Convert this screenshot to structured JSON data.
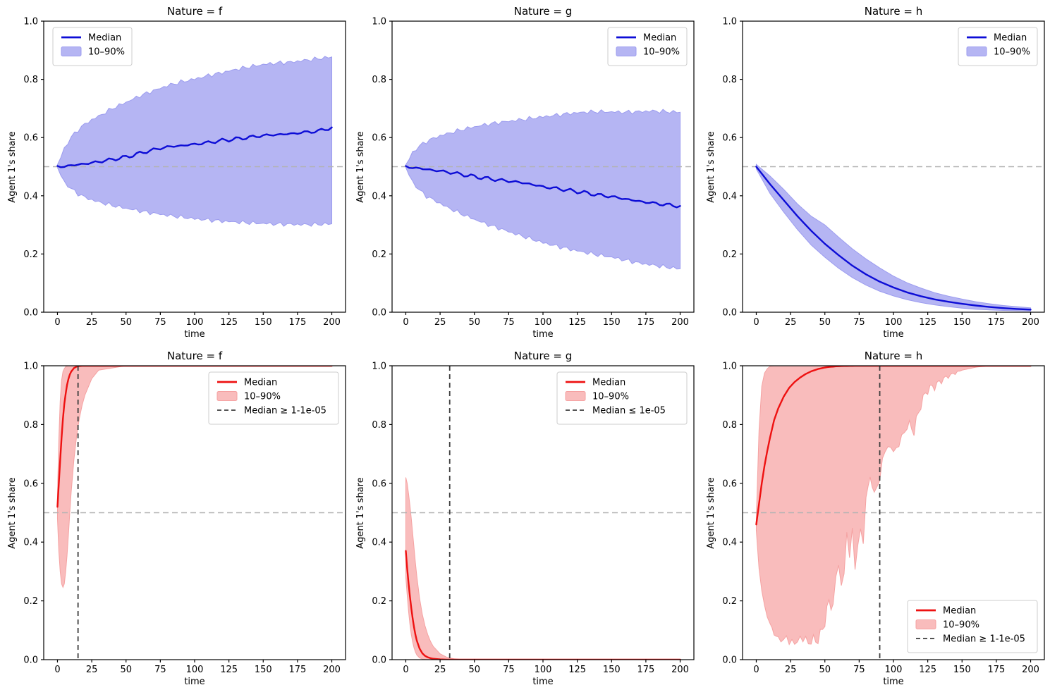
{
  "figure": {
    "background": "#ffffff"
  },
  "styles": {
    "blue_line": "#0d0dd6",
    "blue_fill": "#b5b5f3",
    "blue_fill_edge": "#9c9cef",
    "red_line": "#ee1111",
    "red_fill": "#f9bcbc",
    "red_fill_edge": "#f5a2a2",
    "hline_color": "#b3b3b3",
    "vline_color": "#3d3d3d",
    "spine_color": "#000000",
    "text_color": "#000000",
    "legend_border": "#cccccc",
    "legend_bg": "#ffffff"
  },
  "chart_data": [
    {
      "id": "f-top",
      "type": "line",
      "scheme": "blue",
      "title": "Nature = f",
      "xlabel": "time",
      "ylabel": "Agent 1's share",
      "xlim": [
        0,
        200
      ],
      "ylim": [
        0.0,
        1.0
      ],
      "xticks": [
        0,
        25,
        50,
        75,
        100,
        125,
        150,
        175,
        200
      ],
      "xtick_labels": [
        "0",
        "25",
        "50",
        "75",
        "100",
        "125",
        "150",
        "175",
        "200"
      ],
      "yticks": [
        0.0,
        0.2,
        0.4,
        0.6,
        0.8,
        1.0
      ],
      "ytick_labels": [
        "0.0",
        "0.2",
        "0.4",
        "0.6",
        "0.8",
        "1.0"
      ],
      "hline": 0.5,
      "vline": null,
      "legend": {
        "position": "upper-left",
        "entries": [
          {
            "type": "line",
            "label": "Median"
          },
          {
            "type": "patch",
            "label": "10–90%"
          }
        ]
      },
      "series": {
        "t": [
          0,
          5,
          10,
          15,
          20,
          25,
          30,
          40,
          50,
          60,
          70,
          80,
          90,
          100,
          110,
          120,
          130,
          140,
          150,
          160,
          170,
          180,
          190,
          200
        ],
        "median": [
          0.5,
          0.501,
          0.504,
          0.507,
          0.51,
          0.513,
          0.517,
          0.525,
          0.533,
          0.546,
          0.558,
          0.568,
          0.572,
          0.577,
          0.583,
          0.59,
          0.595,
          0.601,
          0.607,
          0.61,
          0.613,
          0.618,
          0.622,
          0.635
        ],
        "p90": [
          0.505,
          0.562,
          0.601,
          0.626,
          0.646,
          0.661,
          0.673,
          0.7,
          0.721,
          0.743,
          0.761,
          0.778,
          0.791,
          0.801,
          0.813,
          0.823,
          0.834,
          0.843,
          0.851,
          0.856,
          0.859,
          0.865,
          0.871,
          0.877
        ],
        "p10": [
          0.495,
          0.447,
          0.424,
          0.407,
          0.395,
          0.386,
          0.379,
          0.367,
          0.357,
          0.348,
          0.34,
          0.333,
          0.327,
          0.321,
          0.317,
          0.313,
          0.31,
          0.307,
          0.305,
          0.303,
          0.302,
          0.301,
          0.302,
          0.304
        ]
      }
    },
    {
      "id": "g-top",
      "type": "line",
      "scheme": "blue",
      "title": "Nature = g",
      "xlabel": "time",
      "ylabel": "Agent 1's share",
      "xlim": [
        0,
        200
      ],
      "ylim": [
        0.0,
        1.0
      ],
      "xticks": [
        0,
        25,
        50,
        75,
        100,
        125,
        150,
        175,
        200
      ],
      "xtick_labels": [
        "0",
        "25",
        "50",
        "75",
        "100",
        "125",
        "150",
        "175",
        "200"
      ],
      "yticks": [
        0.0,
        0.2,
        0.4,
        0.6,
        0.8,
        1.0
      ],
      "ytick_labels": [
        "0.0",
        "0.2",
        "0.4",
        "0.6",
        "0.8",
        "1.0"
      ],
      "hline": 0.5,
      "vline": null,
      "legend": {
        "position": "upper-right",
        "entries": [
          {
            "type": "line",
            "label": "Median"
          },
          {
            "type": "patch",
            "label": "10–90%"
          }
        ]
      },
      "series": {
        "t": [
          0,
          5,
          10,
          15,
          20,
          25,
          30,
          40,
          50,
          60,
          70,
          80,
          90,
          100,
          110,
          120,
          130,
          140,
          150,
          160,
          170,
          180,
          190,
          200
        ],
        "median": [
          0.5,
          0.497,
          0.494,
          0.491,
          0.488,
          0.485,
          0.482,
          0.474,
          0.466,
          0.459,
          0.453,
          0.448,
          0.441,
          0.431,
          0.425,
          0.418,
          0.411,
          0.403,
          0.397,
          0.389,
          0.381,
          0.375,
          0.369,
          0.365
        ],
        "p90": [
          0.505,
          0.549,
          0.571,
          0.586,
          0.597,
          0.606,
          0.613,
          0.626,
          0.637,
          0.646,
          0.653,
          0.659,
          0.665,
          0.671,
          0.677,
          0.683,
          0.687,
          0.689,
          0.688,
          0.687,
          0.689,
          0.691,
          0.689,
          0.687
        ],
        "p10": [
          0.495,
          0.447,
          0.419,
          0.399,
          0.386,
          0.374,
          0.361,
          0.339,
          0.319,
          0.301,
          0.285,
          0.269,
          0.254,
          0.239,
          0.227,
          0.216,
          0.206,
          0.197,
          0.189,
          0.179,
          0.169,
          0.162,
          0.155,
          0.149
        ]
      }
    },
    {
      "id": "h-top",
      "type": "line",
      "scheme": "blue",
      "title": "Nature = h",
      "xlabel": "time",
      "ylabel": "Agent 1's share",
      "xlim": [
        0,
        200
      ],
      "ylim": [
        0.0,
        1.0
      ],
      "xticks": [
        0,
        25,
        50,
        75,
        100,
        125,
        150,
        175,
        200
      ],
      "xtick_labels": [
        "0",
        "25",
        "50",
        "75",
        "100",
        "125",
        "150",
        "175",
        "200"
      ],
      "yticks": [
        0.0,
        0.2,
        0.4,
        0.6,
        0.8,
        1.0
      ],
      "ytick_labels": [
        "0.0",
        "0.2",
        "0.4",
        "0.6",
        "0.8",
        "1.0"
      ],
      "hline": 0.5,
      "vline": null,
      "legend": {
        "position": "upper-right",
        "entries": [
          {
            "type": "line",
            "label": "Median"
          },
          {
            "type": "patch",
            "label": "10–90%"
          }
        ]
      },
      "series": {
        "t": [
          0,
          10,
          20,
          30,
          40,
          50,
          60,
          70,
          80,
          90,
          100,
          110,
          120,
          130,
          140,
          150,
          160,
          170,
          180,
          190,
          200
        ],
        "median": [
          0.5,
          0.44,
          0.385,
          0.33,
          0.28,
          0.235,
          0.196,
          0.16,
          0.13,
          0.105,
          0.085,
          0.068,
          0.055,
          0.044,
          0.036,
          0.029,
          0.023,
          0.018,
          0.014,
          0.011,
          0.009
        ],
        "p90": [
          0.508,
          0.468,
          0.422,
          0.372,
          0.33,
          0.3,
          0.258,
          0.218,
          0.183,
          0.152,
          0.124,
          0.101,
          0.083,
          0.067,
          0.055,
          0.045,
          0.036,
          0.029,
          0.023,
          0.019,
          0.015
        ],
        "p10": [
          0.492,
          0.408,
          0.344,
          0.284,
          0.231,
          0.189,
          0.151,
          0.119,
          0.093,
          0.072,
          0.056,
          0.043,
          0.033,
          0.025,
          0.019,
          0.014,
          0.01,
          0.008,
          0.006,
          0.005,
          0.004
        ]
      }
    },
    {
      "id": "f-bottom",
      "type": "line",
      "scheme": "red",
      "title": "Nature = f",
      "xlabel": "time",
      "ylabel": "Agent 1's share",
      "xlim": [
        0,
        200
      ],
      "ylim": [
        0.0,
        1.0
      ],
      "xticks": [
        0,
        25,
        50,
        75,
        100,
        125,
        150,
        175,
        200
      ],
      "xtick_labels": [
        "0",
        "25",
        "50",
        "75",
        "100",
        "125",
        "150",
        "175",
        "200"
      ],
      "yticks": [
        0.0,
        0.2,
        0.4,
        0.6,
        0.8,
        1.0
      ],
      "ytick_labels": [
        "0.0",
        "0.2",
        "0.4",
        "0.6",
        "0.8",
        "1.0"
      ],
      "hline": 0.5,
      "vline": 15,
      "legend": {
        "position": "upper-right",
        "entries": [
          {
            "type": "line",
            "label": "Median"
          },
          {
            "type": "patch",
            "label": "10–90%"
          },
          {
            "type": "dashed",
            "label": "Median ≥ 1-1e-05"
          }
        ]
      },
      "series": {
        "t": [
          0,
          1,
          2,
          3,
          4,
          5,
          6,
          7,
          8,
          9,
          10,
          12,
          14,
          16,
          18,
          20,
          25,
          30,
          50,
          100,
          150,
          200
        ],
        "median": [
          0.52,
          0.6,
          0.68,
          0.755,
          0.82,
          0.87,
          0.905,
          0.935,
          0.955,
          0.97,
          0.98,
          0.992,
          0.997,
          0.999,
          1.0,
          1.0,
          1.0,
          1.0,
          1.0,
          1.0,
          1.0,
          1.0
        ],
        "p90": [
          0.56,
          0.75,
          0.88,
          0.95,
          0.98,
          0.99,
          0.997,
          0.999,
          1.0,
          1.0,
          1.0,
          1.0,
          1.0,
          1.0,
          1.0,
          1.0,
          1.0,
          1.0,
          1.0,
          1.0,
          1.0,
          1.0
        ],
        "p10": [
          0.48,
          0.37,
          0.3,
          0.258,
          0.246,
          0.258,
          0.3,
          0.355,
          0.425,
          0.5,
          0.57,
          0.68,
          0.762,
          0.822,
          0.866,
          0.9,
          0.956,
          0.985,
          1.0,
          1.0,
          1.0,
          1.0
        ]
      }
    },
    {
      "id": "g-bottom",
      "type": "line",
      "scheme": "red",
      "title": "Nature = g",
      "xlabel": "time",
      "ylabel": "Agent 1's share",
      "xlim": [
        0,
        200
      ],
      "ylim": [
        0.0,
        1.0
      ],
      "xticks": [
        0,
        25,
        50,
        75,
        100,
        125,
        150,
        175,
        200
      ],
      "xtick_labels": [
        "0",
        "25",
        "50",
        "75",
        "100",
        "125",
        "150",
        "175",
        "200"
      ],
      "yticks": [
        0.0,
        0.2,
        0.4,
        0.6,
        0.8,
        1.0
      ],
      "ytick_labels": [
        "0.0",
        "0.2",
        "0.4",
        "0.6",
        "0.8",
        "1.0"
      ],
      "hline": 0.5,
      "vline": 32,
      "legend": {
        "position": "upper-right",
        "entries": [
          {
            "type": "line",
            "label": "Median"
          },
          {
            "type": "patch",
            "label": "10–90%"
          },
          {
            "type": "dashed",
            "label": "Median ≤ 1e-05"
          }
        ]
      },
      "series": {
        "t": [
          0,
          1,
          2,
          3,
          4,
          5,
          6,
          7,
          8,
          10,
          12,
          14,
          16,
          18,
          20,
          25,
          30,
          35,
          40,
          50,
          100,
          150,
          200
        ],
        "median": [
          0.37,
          0.31,
          0.26,
          0.215,
          0.175,
          0.14,
          0.11,
          0.085,
          0.065,
          0.038,
          0.022,
          0.013,
          0.008,
          0.005,
          0.003,
          0.001,
          0.0,
          0.0,
          0.0,
          0.0,
          0.0,
          0.0,
          0.0
        ],
        "p90": [
          0.62,
          0.6,
          0.565,
          0.525,
          0.48,
          0.43,
          0.38,
          0.33,
          0.285,
          0.21,
          0.155,
          0.115,
          0.085,
          0.062,
          0.045,
          0.02,
          0.008,
          0.003,
          0.001,
          0.0,
          0.0,
          0.0,
          0.0
        ],
        "p10": [
          0.28,
          0.22,
          0.165,
          0.12,
          0.085,
          0.06,
          0.04,
          0.026,
          0.016,
          0.006,
          0.002,
          0.001,
          0.0,
          0.0,
          0.0,
          0.0,
          0.0,
          0.0,
          0.0,
          0.0,
          0.0,
          0.0,
          0.0
        ]
      }
    },
    {
      "id": "h-bottom",
      "type": "line",
      "scheme": "red",
      "title": "Nature = h",
      "xlabel": "time",
      "ylabel": "Agent 1's share",
      "xlim": [
        0,
        200
      ],
      "ylim": [
        0.0,
        1.0
      ],
      "xticks": [
        0,
        25,
        50,
        75,
        100,
        125,
        150,
        175,
        200
      ],
      "xtick_labels": [
        "0",
        "25",
        "50",
        "75",
        "100",
        "125",
        "150",
        "175",
        "200"
      ],
      "yticks": [
        0.0,
        0.2,
        0.4,
        0.6,
        0.8,
        1.0
      ],
      "ytick_labels": [
        "0.0",
        "0.2",
        "0.4",
        "0.6",
        "0.8",
        "1.0"
      ],
      "hline": 0.5,
      "vline": 90,
      "legend": {
        "position": "lower-right",
        "entries": [
          {
            "type": "line",
            "label": "Median"
          },
          {
            "type": "patch",
            "label": "10–90%"
          },
          {
            "type": "dashed",
            "label": "Median ≥ 1-1e-05"
          }
        ]
      },
      "series": {
        "t": [
          0,
          2,
          4,
          6,
          8,
          10,
          13,
          16,
          20,
          24,
          28,
          32,
          36,
          40,
          45,
          50,
          53,
          56,
          58,
          60,
          62,
          64,
          66,
          68,
          70,
          72,
          74,
          76,
          78,
          80,
          83,
          86,
          90,
          94,
          98,
          102,
          106,
          110,
          115,
          120,
          125,
          130,
          135,
          140,
          145,
          150,
          155,
          160,
          170,
          180,
          190,
          200
        ],
        "median": [
          0.46,
          0.53,
          0.6,
          0.66,
          0.71,
          0.755,
          0.815,
          0.855,
          0.895,
          0.925,
          0.945,
          0.96,
          0.972,
          0.981,
          0.989,
          0.994,
          0.996,
          0.997,
          0.998,
          0.9985,
          0.999,
          0.9992,
          0.9994,
          0.9996,
          0.9997,
          0.9998,
          0.9999,
          1.0,
          1.0,
          1.0,
          1.0,
          1.0,
          1.0,
          1.0,
          1.0,
          1.0,
          1.0,
          1.0,
          1.0,
          1.0,
          1.0,
          1.0,
          1.0,
          1.0,
          1.0,
          1.0,
          1.0,
          1.0,
          1.0,
          1.0,
          1.0,
          1.0
        ],
        "p90": [
          0.48,
          0.78,
          0.93,
          0.975,
          0.99,
          0.998,
          1.0,
          1.0,
          1.0,
          1.0,
          1.0,
          1.0,
          1.0,
          1.0,
          1.0,
          1.0,
          1.0,
          1.0,
          1.0,
          1.0,
          1.0,
          1.0,
          1.0,
          1.0,
          1.0,
          1.0,
          1.0,
          1.0,
          1.0,
          1.0,
          1.0,
          1.0,
          1.0,
          1.0,
          1.0,
          1.0,
          1.0,
          1.0,
          1.0,
          1.0,
          1.0,
          1.0,
          1.0,
          1.0,
          1.0,
          1.0,
          1.0,
          1.0,
          1.0,
          1.0,
          1.0,
          1.0
        ],
        "p10": [
          0.44,
          0.31,
          0.235,
          0.185,
          0.145,
          0.115,
          0.09,
          0.075,
          0.065,
          0.062,
          0.066,
          0.063,
          0.068,
          0.064,
          0.067,
          0.125,
          0.205,
          0.17,
          0.28,
          0.33,
          0.25,
          0.31,
          0.42,
          0.34,
          0.45,
          0.3,
          0.41,
          0.44,
          0.39,
          0.55,
          0.62,
          0.57,
          0.61,
          0.72,
          0.73,
          0.7,
          0.76,
          0.8,
          0.78,
          0.87,
          0.92,
          0.93,
          0.95,
          0.965,
          0.975,
          0.985,
          0.99,
          0.995,
          1.0,
          1.0,
          1.0,
          1.0
        ]
      }
    }
  ]
}
